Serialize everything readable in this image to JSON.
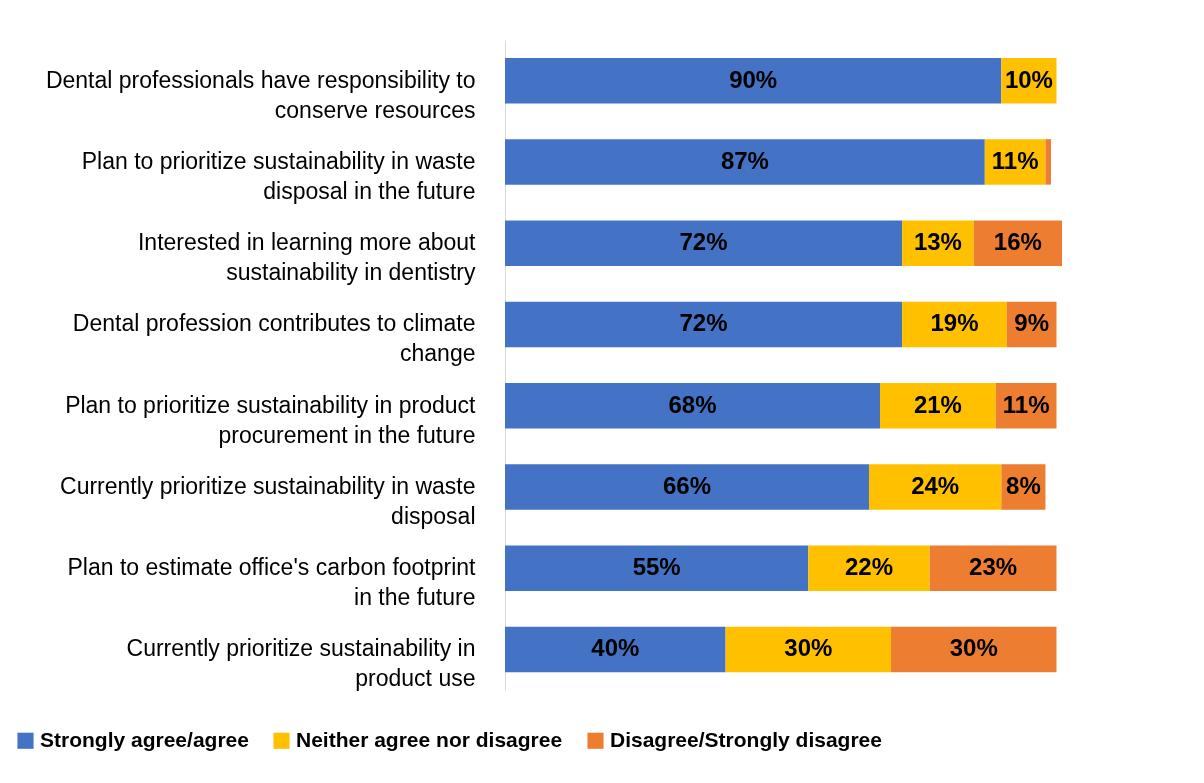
{
  "chart_data": {
    "type": "bar",
    "orientation": "horizontal",
    "stacked": true,
    "legend": "bottom",
    "categories": [
      "Dental professionals have responsibility to conserve resources",
      "Plan to prioritize sustainability in waste disposal in the future",
      "Interested in learning more about sustainability in dentistry",
      "Dental profession contributes to climate change",
      "Plan to prioritize sustainability in product procurement in the future",
      "Currently prioritize sustainability in waste disposal",
      "Plan to estimate office's carbon footprint in the future",
      "Currently prioritize sustainability in product use"
    ],
    "series": [
      {
        "name": "Strongly agree/agree",
        "color": "#4472c4",
        "values": [
          90,
          87,
          72,
          72,
          68,
          66,
          55,
          40
        ],
        "value_labels": [
          "90%",
          "87%",
          "72%",
          "72%",
          "68%",
          "66%",
          "55%",
          "40%"
        ]
      },
      {
        "name": "Neither agree nor disagree",
        "color": "#ffc000",
        "values": [
          10,
          11,
          13,
          19,
          21,
          24,
          22,
          30
        ],
        "value_labels": [
          "10%",
          "11%",
          "13%",
          "19%",
          "21%",
          "24%",
          "22%",
          "30%"
        ]
      },
      {
        "name": "Disagree/Strongly disagree",
        "color": "#ed7d31",
        "values": [
          0,
          1,
          16,
          9,
          11,
          8,
          23,
          30
        ],
        "value_labels": [
          null,
          null,
          "16%",
          "9%",
          "11%",
          "8%",
          "23%",
          "30%"
        ]
      }
    ]
  }
}
